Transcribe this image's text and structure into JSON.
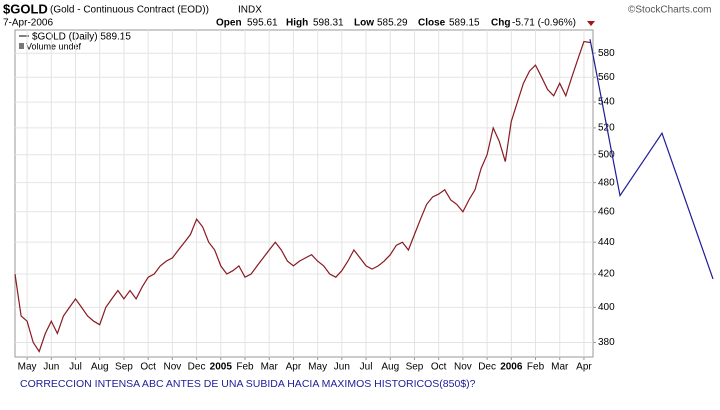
{
  "header": {
    "symbol": "$GOLD",
    "description": "(Gold - Continuous Contract (EOD))",
    "exchange": "INDX",
    "date": "7-Apr-2006",
    "stats": [
      {
        "label": "Open",
        "value": 595.61
      },
      {
        "label": "High",
        "value": 598.31
      },
      {
        "label": "Low",
        "value": 585.29
      },
      {
        "label": "Close",
        "value": 589.15
      },
      {
        "label": "Chg",
        "value": "-5.71 (-0.96%)"
      }
    ],
    "brand": "©StockCharts.com"
  },
  "chart_data": {
    "type": "line",
    "legend": [
      "$GOLD (Daily) 589.15",
      "Volume undef"
    ],
    "categories": [
      null,
      null,
      "May",
      null,
      null,
      null,
      "Jun",
      null,
      null,
      null,
      "Jul",
      null,
      null,
      null,
      "Aug",
      null,
      null,
      null,
      "Sep",
      null,
      null,
      null,
      "Oct",
      null,
      null,
      null,
      "Nov",
      null,
      null,
      null,
      "Dec",
      null,
      null,
      null,
      "2005",
      null,
      null,
      null,
      "Feb",
      null,
      null,
      null,
      "Mar",
      null,
      null,
      null,
      "Apr",
      null,
      null,
      null,
      "May",
      null,
      null,
      null,
      "Jun",
      null,
      null,
      null,
      "Jul",
      null,
      null,
      null,
      "Aug",
      null,
      null,
      null,
      "Sep",
      null,
      null,
      null,
      "Oct",
      null,
      null,
      null,
      "Nov",
      null,
      null,
      null,
      "Dec",
      null,
      null,
      null,
      "2006",
      null,
      null,
      null,
      "Feb",
      null,
      null,
      null,
      "Mar",
      null,
      null,
      null,
      "Apr",
      null
    ],
    "series": [
      {
        "name": "$GOLD",
        "color": "#8a1a22",
        "values": [
          420,
          395,
          392,
          380,
          375,
          385,
          392,
          385,
          395,
          400,
          405,
          400,
          395,
          392,
          390,
          400,
          405,
          410,
          405,
          410,
          405,
          412,
          418,
          420,
          425,
          428,
          430,
          435,
          440,
          445,
          455,
          450,
          440,
          435,
          425,
          420,
          422,
          425,
          418,
          420,
          425,
          430,
          435,
          440,
          435,
          428,
          425,
          428,
          430,
          432,
          428,
          425,
          420,
          418,
          422,
          428,
          435,
          430,
          425,
          423,
          425,
          428,
          432,
          438,
          440,
          435,
          445,
          455,
          465,
          470,
          472,
          475,
          468,
          465,
          460,
          468,
          475,
          490,
          500,
          520,
          510,
          495,
          525,
          540,
          555,
          565,
          570,
          560,
          550,
          545,
          555,
          545,
          560,
          575,
          590,
          589.15
        ]
      }
    ],
    "ylim": [
      372,
      600
    ],
    "log_scale": true,
    "yticks": [
      380,
      400,
      420,
      440,
      460,
      480,
      500,
      520,
      540,
      560,
      580
    ],
    "grid": true,
    "annotation_line": {
      "color": "#1c1c9a",
      "values": [
        592,
        471,
        516,
        417
      ]
    },
    "caption": "CORRECCION INTENSA ABC ANTES DE UNA SUBIDA HACIA MAXIMOS HISTORICOS(850$)?"
  }
}
